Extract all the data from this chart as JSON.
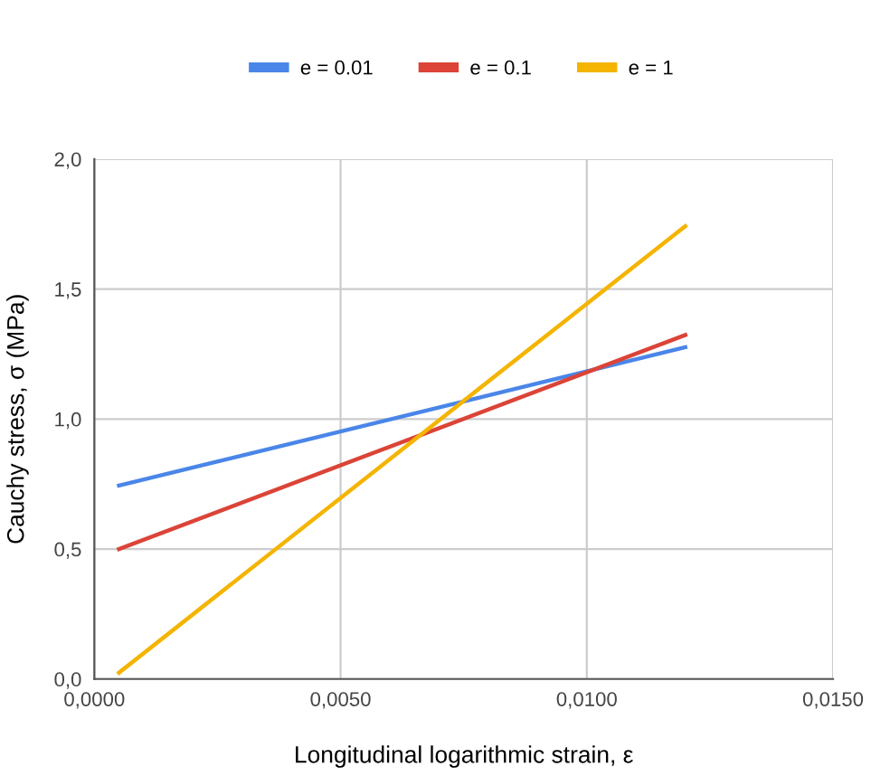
{
  "chart_data": {
    "type": "line",
    "xlabel": "Longitudinal logarithmic strain, ε",
    "ylabel": "Cauchy stress, σ (MPa)",
    "x": [
      0.0005,
      0.012
    ],
    "series": [
      {
        "name": "e = 0.01",
        "color": "#4a86e8",
        "values": [
          0.744,
          1.276
        ]
      },
      {
        "name": "e = 0.1",
        "color": "#db4437",
        "values": [
          0.5,
          1.323
        ]
      },
      {
        "name": "e = 1",
        "color": "#f4b400",
        "values": [
          0.024,
          1.742
        ]
      }
    ],
    "xlim": [
      0,
      0.015
    ],
    "xticks": [
      {
        "value": 0,
        "label": "0,0000"
      },
      {
        "value": 0.005,
        "label": "0,0050"
      },
      {
        "value": 0.01,
        "label": "0,0100"
      },
      {
        "value": 0.015,
        "label": "0,0150"
      }
    ],
    "ylim": [
      0,
      2
    ],
    "yticks": [
      {
        "value": 0,
        "label": "0,0"
      },
      {
        "value": 0.5,
        "label": "0,5"
      },
      {
        "value": 1,
        "label": "1,0"
      },
      {
        "value": 1.5,
        "label": "1,5"
      },
      {
        "value": 2,
        "label": "2,0"
      }
    ],
    "grid": true,
    "legend": "top",
    "marker": "none",
    "line_style": "solid"
  }
}
